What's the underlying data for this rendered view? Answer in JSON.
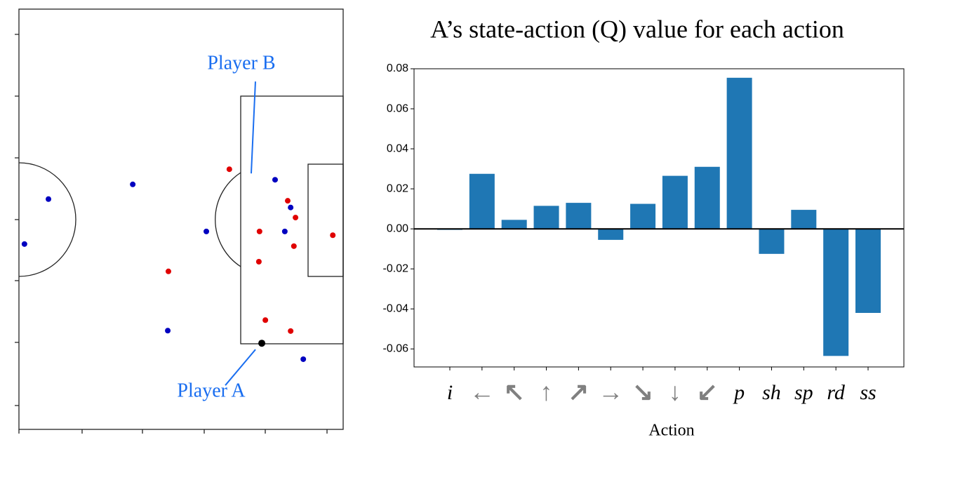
{
  "chart_data": [
    {
      "type": "scatter",
      "xlim": [
        0,
        100
      ],
      "ylim": [
        0,
        100
      ],
      "series": [
        {
          "color": "#0000c0",
          "x": [
            9.1,
            1.7,
            35.1,
            57.8,
            79.0,
            83.8,
            82.0,
            45.9,
            87.7
          ],
          "values": [
            54.8,
            44.1,
            58.3,
            47.1,
            59.4,
            52.8,
            47.1,
            23.5,
            16.7
          ]
        },
        {
          "color": "#e00000",
          "x": [
            64.9,
            82.9,
            85.3,
            74.2,
            84.8,
            96.8,
            74.0,
            46.1,
            76.0,
            83.8
          ],
          "values": [
            61.9,
            54.4,
            50.4,
            47.1,
            43.6,
            46.2,
            39.9,
            37.6,
            26.0,
            23.4
          ]
        },
        {
          "color": "#000000",
          "x": [
            74.9
          ],
          "values": [
            20.5
          ]
        }
      ],
      "annotations": [
        {
          "text": "Player B",
          "x": 79.0,
          "y": 59.4
        },
        {
          "text": "Player A",
          "x": 74.9,
          "y": 20.5
        }
      ]
    },
    {
      "type": "bar",
      "title": "A’s state-action (Q) value for each action",
      "xlabel": "Action",
      "categories": [
        "i",
        "←",
        "↖",
        "↑",
        "↗",
        "→",
        "↘",
        "↓",
        "↙",
        "p",
        "sh",
        "sp",
        "rd",
        "ss"
      ],
      "values": [
        -0.0005,
        0.0275,
        0.0045,
        0.0115,
        0.013,
        -0.0055,
        0.0125,
        0.0265,
        0.031,
        0.0755,
        -0.0125,
        0.0095,
        -0.0635,
        -0.042
      ],
      "color": "#1f77b4",
      "ylim": [
        -0.069,
        0.08
      ],
      "yticks": [
        -0.06,
        -0.04,
        -0.02,
        {
          "value": 0,
          "label": "0.00"
        },
        0.02,
        0.04,
        0.06,
        0.08
      ]
    }
  ]
}
